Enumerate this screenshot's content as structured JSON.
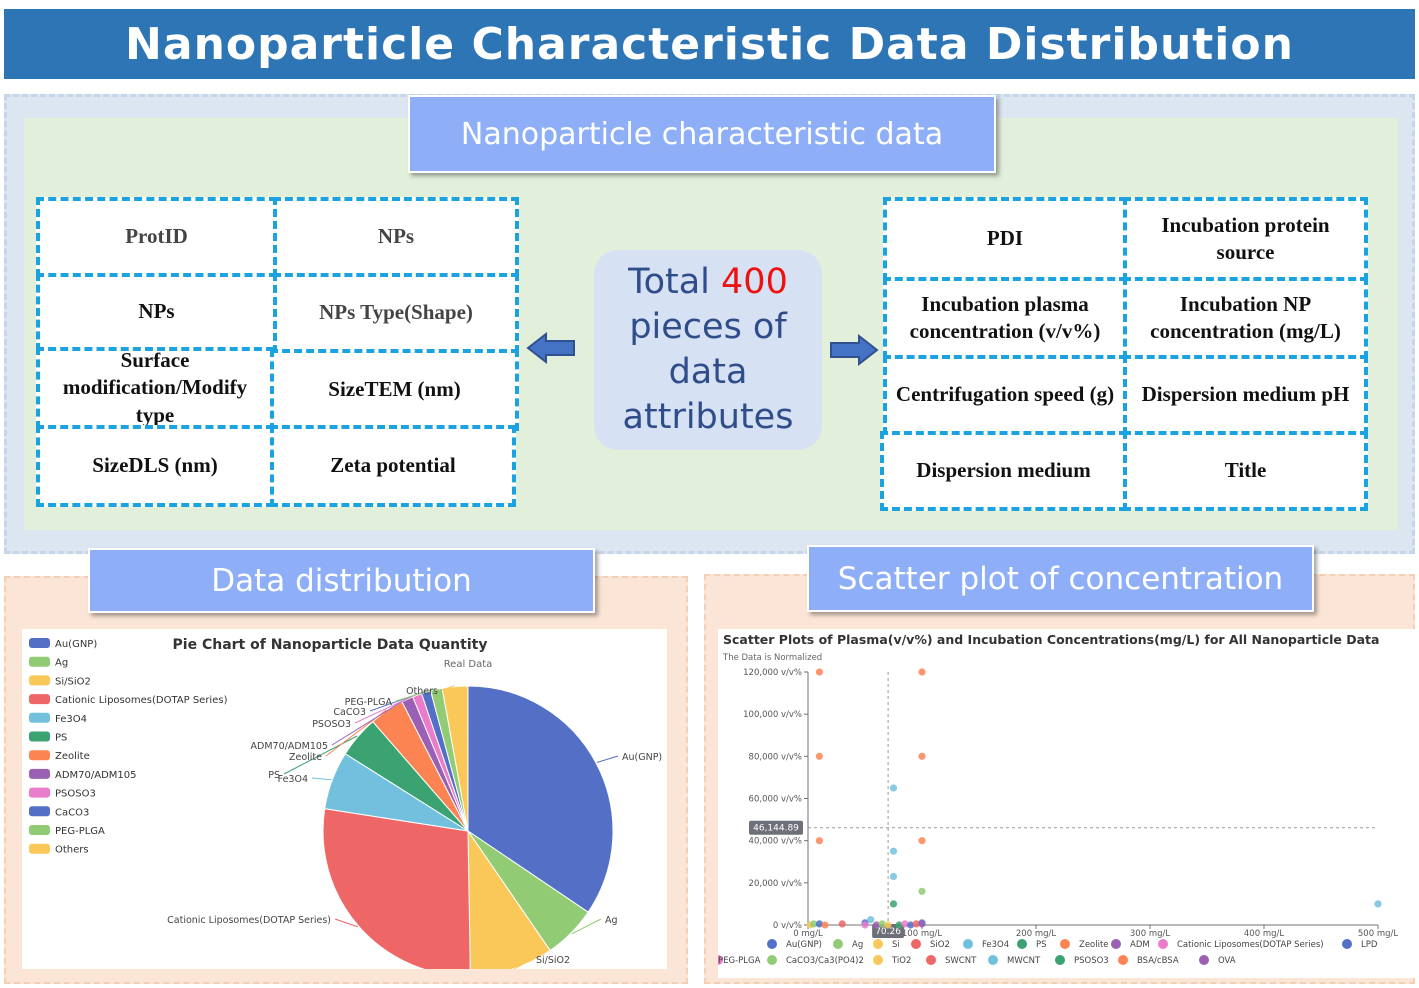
{
  "banner": {
    "title": "Nanoparticle Characteristic Data Distribution"
  },
  "characteristics": {
    "header": "Nanoparticle characteristic data",
    "left_cells": [
      "ProtID",
      "NPs",
      "NPs",
      "NPs Type(Shape)",
      "Surface modification/Modify type",
      "SizeTEM (nm)",
      "SizeDLS (nm)",
      "Zeta potential"
    ],
    "right_cells": [
      "PDI",
      "Incubation protein source",
      "Incubation plasma concentration (v/v%)",
      "Incubation NP concentration (mg/L)",
      "Centrifugation speed (g)",
      "Dispersion medium pH",
      "Dispersion medium",
      "Title"
    ],
    "center": {
      "prefix": "Total",
      "count": "400",
      "line2": "pieces of",
      "line3": "data",
      "line4": "attributes"
    }
  },
  "distribution": {
    "header": "Data distribution"
  },
  "scatter_section": {
    "header": "Scatter plot of concentration"
  },
  "chart_data": [
    {
      "type": "pie",
      "title": "Pie Chart of Nanoparticle Data Quantity",
      "subtitle": "Real Data",
      "legend_position": "left",
      "categories": [
        "Au(GNP)",
        "Ag",
        "Si/SiO2",
        "Cationic Liposomes(DOTAP Series)",
        "Fe3O4",
        "PS",
        "Zeolite",
        "ADM70/ADM105",
        "PSOSO3",
        "CaCO3",
        "PEG-PLGA",
        "Others"
      ],
      "values": [
        133,
        23,
        36,
        107,
        25,
        18,
        15,
        5,
        4,
        4,
        5,
        11
      ],
      "colors": [
        "#5470c6",
        "#91cc75",
        "#fac858",
        "#ee6666",
        "#73c0de",
        "#3ba272",
        "#fc8452",
        "#9a60b4",
        "#ea7ccc",
        "#5470c6",
        "#91cc75",
        "#fac858"
      ]
    },
    {
      "type": "scatter",
      "title": "Scatter Plots of Plasma(v/v%) and Incubation Concentrations(mg/L) for All Nanoparticle Data",
      "subtitle": "The Data is Normalized",
      "x_unit": "mg/L",
      "y_unit": "v/v%",
      "xlim": [
        0,
        500
      ],
      "ylim": [
        0,
        120000
      ],
      "x_ticks": [
        "0 mg/L",
        "100 mg/L",
        "200 mg/L",
        "300 mg/L",
        "400 mg/L",
        "500 mg/L"
      ],
      "y_ticks": [
        "0 v/v%",
        "20,000 v/v%",
        "40,000 v/v%",
        "60,000 v/v%",
        "80,000 v/v%",
        "100,000 v/v%",
        "120,000 v/v%"
      ],
      "crosshair": {
        "x_label": "70.26",
        "y_label": "46,144.89"
      },
      "legend": [
        {
          "name": "Au(GNP)",
          "color": "#5470c6"
        },
        {
          "name": "Ag",
          "color": "#91cc75"
        },
        {
          "name": "Si",
          "color": "#fac858"
        },
        {
          "name": "SiO2",
          "color": "#ee6666"
        },
        {
          "name": "Fe3O4",
          "color": "#73c0de"
        },
        {
          "name": "PS",
          "color": "#3ba272"
        },
        {
          "name": "Zeolite",
          "color": "#fc8452"
        },
        {
          "name": "ADM",
          "color": "#9a60b4"
        },
        {
          "name": "Cationic Liposomes(DOTAP Series)",
          "color": "#ea7ccc"
        },
        {
          "name": "LPD",
          "color": "#5470c6"
        },
        {
          "name": "CaCO3/Ca3(PO4)2",
          "color": "#91cc75"
        },
        {
          "name": "TiO2",
          "color": "#fac858"
        },
        {
          "name": "SWCNT",
          "color": "#ee6666"
        },
        {
          "name": "MWCNT",
          "color": "#73c0de"
        },
        {
          "name": "PSOSO3",
          "color": "#3ba272"
        },
        {
          "name": "BSA/cBSA",
          "color": "#fc8452"
        },
        {
          "name": "OVA",
          "color": "#9a60b4"
        },
        {
          "name": "PEG-PLGA",
          "color": "#ea7ccc"
        }
      ],
      "points": [
        {
          "x": 10,
          "y": 120000,
          "color": "#fc8452"
        },
        {
          "x": 10,
          "y": 80000,
          "color": "#fc8452"
        },
        {
          "x": 10,
          "y": 40000,
          "color": "#fc8452"
        },
        {
          "x": 100,
          "y": 120000,
          "color": "#fc8452"
        },
        {
          "x": 100,
          "y": 80000,
          "color": "#fc8452"
        },
        {
          "x": 100,
          "y": 40000,
          "color": "#fc8452"
        },
        {
          "x": 100,
          "y": 16000,
          "color": "#91cc75"
        },
        {
          "x": 75,
          "y": 65000,
          "color": "#73c0de"
        },
        {
          "x": 75,
          "y": 35000,
          "color": "#73c0de"
        },
        {
          "x": 75,
          "y": 23000,
          "color": "#73c0de"
        },
        {
          "x": 75,
          "y": 10000,
          "color": "#3ba272"
        },
        {
          "x": 500,
          "y": 10000,
          "color": "#73c0de"
        },
        {
          "x": 2,
          "y": 0,
          "color": "#fac858"
        },
        {
          "x": 5,
          "y": 500,
          "color": "#91cc75"
        },
        {
          "x": 10,
          "y": 500,
          "color": "#5470c6"
        },
        {
          "x": 30,
          "y": 500,
          "color": "#ee6666"
        },
        {
          "x": 50,
          "y": 1000,
          "color": "#5470c6"
        },
        {
          "x": 55,
          "y": 2500,
          "color": "#73c0de"
        },
        {
          "x": 60,
          "y": 0,
          "color": "#9a60b4"
        },
        {
          "x": 65,
          "y": 500,
          "color": "#91cc75"
        },
        {
          "x": 70,
          "y": 0,
          "color": "#fac858"
        },
        {
          "x": 80,
          "y": 0,
          "color": "#3ba272"
        },
        {
          "x": 85,
          "y": 500,
          "color": "#ea7ccc"
        },
        {
          "x": 90,
          "y": 0,
          "color": "#5470c6"
        },
        {
          "x": 95,
          "y": 500,
          "color": "#ee6666"
        },
        {
          "x": 100,
          "y": 1000,
          "color": "#5470c6"
        },
        {
          "x": 100,
          "y": 500,
          "color": "#9a60b4"
        },
        {
          "x": 50,
          "y": 0,
          "color": "#ea7ccc"
        },
        {
          "x": 15,
          "y": 0,
          "color": "#fc8452"
        }
      ]
    }
  ]
}
